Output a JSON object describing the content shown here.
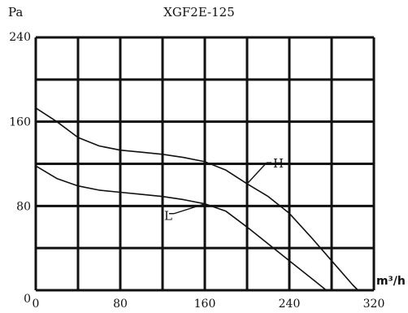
{
  "chart_data": {
    "type": "line",
    "title": "XGF2E-125",
    "ylabel": "Pa",
    "xlabel": "m³/h",
    "xlim": [
      0,
      320
    ],
    "ylim": [
      0,
      240
    ],
    "x_ticks": [
      "0",
      "80",
      "160",
      "240",
      "320"
    ],
    "y_ticks": [
      "0",
      "80",
      "160",
      "240"
    ],
    "grid": true,
    "series": [
      {
        "name": "H",
        "points": [
          [
            0,
            173
          ],
          [
            20,
            160
          ],
          [
            40,
            145
          ],
          [
            60,
            137
          ],
          [
            80,
            133
          ],
          [
            100,
            131
          ],
          [
            120,
            129
          ],
          [
            140,
            126
          ],
          [
            160,
            122
          ],
          [
            180,
            114
          ],
          [
            200,
            101
          ],
          [
            220,
            89
          ],
          [
            240,
            73
          ],
          [
            260,
            51
          ],
          [
            280,
            28
          ],
          [
            300,
            5
          ],
          [
            305,
            0
          ]
        ]
      },
      {
        "name": "L",
        "points": [
          [
            0,
            118
          ],
          [
            20,
            106
          ],
          [
            40,
            99
          ],
          [
            60,
            95
          ],
          [
            80,
            93
          ],
          [
            100,
            91
          ],
          [
            120,
            89
          ],
          [
            140,
            86
          ],
          [
            160,
            82
          ],
          [
            180,
            75
          ],
          [
            200,
            60
          ],
          [
            220,
            44
          ],
          [
            240,
            28
          ],
          [
            260,
            12
          ],
          [
            275,
            0
          ]
        ]
      }
    ],
    "annotations": [
      {
        "text": "H",
        "x": 200,
        "y": 101
      },
      {
        "text": "L",
        "x": 160,
        "y": 82
      }
    ]
  }
}
